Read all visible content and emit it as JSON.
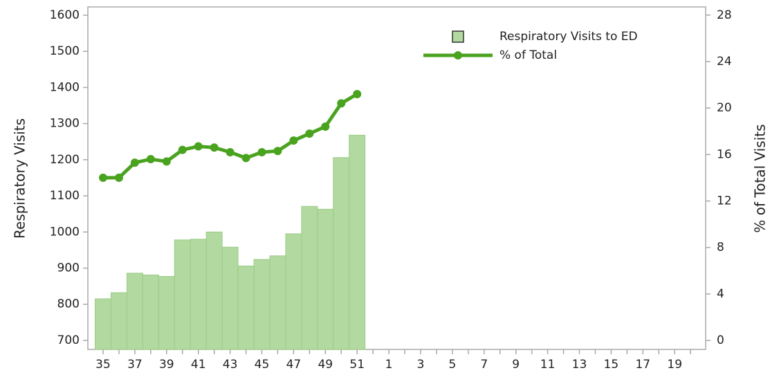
{
  "chart_data": {
    "type": "bar_line",
    "y_label": "Respiratory Visits",
    "y2_label": "% of Total Visits",
    "categories": [
      "35",
      null,
      "37",
      null,
      "39",
      null,
      "41",
      null,
      "43",
      null,
      "45",
      null,
      "47",
      null,
      "49",
      null,
      "51",
      null,
      "1",
      null,
      "3",
      null,
      "5",
      null,
      "7",
      null,
      "9",
      null,
      "11",
      null,
      "13",
      null,
      "15",
      null,
      "17",
      null,
      "19",
      null
    ],
    "series": [
      {
        "name": "Respiratory Visits to ED",
        "type": "bar",
        "color": "#b2d9a0",
        "edge_color": "#9ccc86",
        "values": [
          815,
          832,
          886,
          881,
          877,
          978,
          980,
          1000,
          958,
          906,
          924,
          934,
          995,
          1071,
          1063,
          1206,
          1268,
          null,
          null,
          null,
          null,
          null,
          null,
          null,
          null,
          null,
          null,
          null,
          null,
          null,
          null,
          null,
          null,
          null,
          null,
          null,
          null,
          null
        ]
      },
      {
        "name": "% of Total",
        "type": "line",
        "axis": "y2",
        "color": "#4aa31f",
        "values": [
          14.0,
          14.0,
          15.3,
          15.6,
          15.4,
          16.4,
          16.7,
          16.6,
          16.2,
          15.7,
          16.2,
          16.3,
          17.2,
          17.8,
          18.4,
          20.4,
          21.2,
          null,
          null,
          null,
          null,
          null,
          null,
          null,
          null,
          null,
          null,
          null,
          null,
          null,
          null,
          null,
          null,
          null,
          null,
          null,
          null,
          null
        ]
      }
    ],
    "ylim": [
      675,
      1623
    ],
    "yticks": [
      700,
      800,
      900,
      1000,
      1100,
      1200,
      1300,
      1400,
      1500,
      1600
    ],
    "y2lim": [
      -0.77,
      28.7
    ],
    "y2ticks": [
      0,
      4,
      8,
      12,
      16,
      20,
      24,
      28
    ],
    "legend": "upper right",
    "grid": false
  }
}
